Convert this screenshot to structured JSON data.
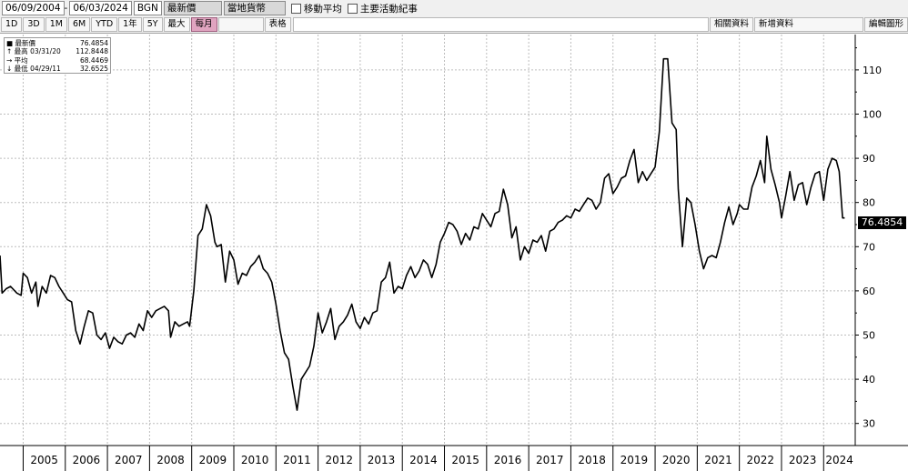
{
  "toolbar": {
    "start_date": "06/09/2004",
    "end_date": "06/03/2024",
    "currency": "BGN",
    "price_type": "最新價",
    "local_currency": "當地貨幣",
    "moving_average": "移動平均",
    "major_events": "主要活動紀事",
    "periods": [
      "1D",
      "3D",
      "1M",
      "6M",
      "YTD",
      "1年",
      "5Y",
      "最大"
    ],
    "frequency": "每月",
    "table": "表格",
    "related_data": "相關資料",
    "new_data": "新增資料",
    "edit_chart": "編輯圖形"
  },
  "legend": {
    "last_label": "最新價",
    "last_value": "76.4854",
    "high_label": "最高",
    "high_date": "03/31/20",
    "high_value": "112.8448",
    "avg_label": "平均",
    "avg_value": "68.4469",
    "low_label": "最低",
    "low_date": "04/29/11",
    "low_value": "32.6525"
  },
  "last_value_tag": "76.4854",
  "colors": {
    "line": "#000000",
    "grid": "#bdbdbd",
    "tag_bg": "#000000",
    "tag_text": "#ffffff"
  },
  "chart_data": {
    "type": "line",
    "title": "",
    "xlabel": "",
    "ylabel": "",
    "x_ticks": [
      "2005",
      "2006",
      "2007",
      "2008",
      "2009",
      "2010",
      "2011",
      "2012",
      "2013",
      "2014",
      "2015",
      "2016",
      "2017",
      "2018",
      "2019",
      "2020",
      "2021",
      "2022",
      "2023",
      "2024"
    ],
    "y_ticks": [
      30,
      40,
      50,
      60,
      70,
      80,
      90,
      100,
      110
    ],
    "ylim": [
      25,
      118
    ],
    "xlim": [
      2004.45,
      2024.75
    ],
    "grid": true,
    "y_axis_side": "right",
    "series": [
      {
        "values": [
          [
            2004.45,
            68.0
          ],
          [
            2004.5,
            59.5
          ],
          [
            2004.6,
            60.5
          ],
          [
            2004.7,
            61.0
          ],
          [
            2004.85,
            59.5
          ],
          [
            2004.95,
            59.0
          ],
          [
            2005.0,
            64.0
          ],
          [
            2005.1,
            63.0
          ],
          [
            2005.2,
            59.5
          ],
          [
            2005.3,
            62.0
          ],
          [
            2005.35,
            56.5
          ],
          [
            2005.45,
            61.0
          ],
          [
            2005.55,
            59.5
          ],
          [
            2005.65,
            63.5
          ],
          [
            2005.75,
            63.0
          ],
          [
            2005.85,
            61.0
          ],
          [
            2005.95,
            59.5
          ],
          [
            2006.05,
            58.0
          ],
          [
            2006.15,
            57.5
          ],
          [
            2006.25,
            51.0
          ],
          [
            2006.35,
            48.0
          ],
          [
            2006.45,
            52.0
          ],
          [
            2006.55,
            55.5
          ],
          [
            2006.65,
            55.0
          ],
          [
            2006.75,
            50.0
          ],
          [
            2006.85,
            49.0
          ],
          [
            2006.95,
            50.5
          ],
          [
            2007.05,
            47.0
          ],
          [
            2007.15,
            49.5
          ],
          [
            2007.25,
            48.5
          ],
          [
            2007.35,
            48.0
          ],
          [
            2007.45,
            50.0
          ],
          [
            2007.55,
            50.5
          ],
          [
            2007.65,
            49.5
          ],
          [
            2007.75,
            52.5
          ],
          [
            2007.85,
            51.0
          ],
          [
            2007.95,
            55.5
          ],
          [
            2008.05,
            54.0
          ],
          [
            2008.15,
            55.5
          ],
          [
            2008.25,
            56.0
          ],
          [
            2008.35,
            56.5
          ],
          [
            2008.45,
            55.5
          ],
          [
            2008.5,
            49.5
          ],
          [
            2008.6,
            53.0
          ],
          [
            2008.7,
            52.0
          ],
          [
            2008.8,
            52.5
          ],
          [
            2008.9,
            53.0
          ],
          [
            2008.95,
            52.0
          ],
          [
            2009.05,
            60.0
          ],
          [
            2009.15,
            72.5
          ],
          [
            2009.25,
            74.0
          ],
          [
            2009.35,
            79.5
          ],
          [
            2009.45,
            77.0
          ],
          [
            2009.55,
            71.0
          ],
          [
            2009.6,
            70.0
          ],
          [
            2009.7,
            70.5
          ],
          [
            2009.8,
            62.0
          ],
          [
            2009.9,
            69.0
          ],
          [
            2010.0,
            67.0
          ],
          [
            2010.1,
            61.5
          ],
          [
            2010.2,
            64.0
          ],
          [
            2010.3,
            63.5
          ],
          [
            2010.4,
            65.5
          ],
          [
            2010.5,
            66.5
          ],
          [
            2010.6,
            68.0
          ],
          [
            2010.7,
            65.0
          ],
          [
            2010.8,
            64.0
          ],
          [
            2010.9,
            62.0
          ],
          [
            2011.0,
            57.0
          ],
          [
            2011.1,
            51.0
          ],
          [
            2011.2,
            46.0
          ],
          [
            2011.3,
            44.5
          ],
          [
            2011.4,
            38.5
          ],
          [
            2011.5,
            33.0
          ],
          [
            2011.6,
            40.0
          ],
          [
            2011.7,
            41.5
          ],
          [
            2011.8,
            43.0
          ],
          [
            2011.9,
            47.5
          ],
          [
            2012.0,
            55.0
          ],
          [
            2012.1,
            50.5
          ],
          [
            2012.2,
            53.0
          ],
          [
            2012.3,
            56.0
          ],
          [
            2012.4,
            49.0
          ],
          [
            2012.5,
            52.0
          ],
          [
            2012.6,
            53.0
          ],
          [
            2012.7,
            54.5
          ],
          [
            2012.8,
            57.0
          ],
          [
            2012.9,
            53.0
          ],
          [
            2013.0,
            51.5
          ],
          [
            2013.1,
            54.0
          ],
          [
            2013.2,
            52.5
          ],
          [
            2013.3,
            55.0
          ],
          [
            2013.4,
            55.5
          ],
          [
            2013.5,
            62.0
          ],
          [
            2013.6,
            63.0
          ],
          [
            2013.7,
            66.5
          ],
          [
            2013.8,
            59.5
          ],
          [
            2013.9,
            61.0
          ],
          [
            2014.0,
            60.5
          ],
          [
            2014.1,
            63.5
          ],
          [
            2014.2,
            65.5
          ],
          [
            2014.3,
            63.0
          ],
          [
            2014.4,
            64.5
          ],
          [
            2014.5,
            67.0
          ],
          [
            2014.6,
            66.0
          ],
          [
            2014.7,
            63.0
          ],
          [
            2014.8,
            66.0
          ],
          [
            2014.9,
            71.0
          ],
          [
            2015.0,
            73.0
          ],
          [
            2015.1,
            75.5
          ],
          [
            2015.2,
            75.0
          ],
          [
            2015.3,
            73.5
          ],
          [
            2015.4,
            70.5
          ],
          [
            2015.5,
            73.0
          ],
          [
            2015.6,
            71.5
          ],
          [
            2015.7,
            74.5
          ],
          [
            2015.8,
            74.0
          ],
          [
            2015.9,
            77.5
          ],
          [
            2016.0,
            76.0
          ],
          [
            2016.1,
            74.5
          ],
          [
            2016.2,
            77.5
          ],
          [
            2016.3,
            78.0
          ],
          [
            2016.4,
            83.0
          ],
          [
            2016.5,
            79.5
          ],
          [
            2016.6,
            72.0
          ],
          [
            2016.7,
            74.5
          ],
          [
            2016.8,
            67.0
          ],
          [
            2016.9,
            70.0
          ],
          [
            2017.0,
            68.5
          ],
          [
            2017.1,
            71.5
          ],
          [
            2017.2,
            71.0
          ],
          [
            2017.3,
            72.5
          ],
          [
            2017.4,
            69.0
          ],
          [
            2017.5,
            73.5
          ],
          [
            2017.6,
            74.0
          ],
          [
            2017.7,
            75.5
          ],
          [
            2017.8,
            76.0
          ],
          [
            2017.9,
            77.0
          ],
          [
            2018.0,
            76.5
          ],
          [
            2018.1,
            78.5
          ],
          [
            2018.2,
            78.0
          ],
          [
            2018.3,
            79.5
          ],
          [
            2018.4,
            81.0
          ],
          [
            2018.5,
            80.5
          ],
          [
            2018.6,
            78.5
          ],
          [
            2018.7,
            80.0
          ],
          [
            2018.8,
            85.5
          ],
          [
            2018.9,
            86.5
          ],
          [
            2019.0,
            82.0
          ],
          [
            2019.1,
            83.5
          ],
          [
            2019.2,
            85.5
          ],
          [
            2019.3,
            86.0
          ],
          [
            2019.4,
            89.5
          ],
          [
            2019.5,
            92.0
          ],
          [
            2019.6,
            84.5
          ],
          [
            2019.7,
            87.0
          ],
          [
            2019.8,
            85.0
          ],
          [
            2019.9,
            86.5
          ],
          [
            2020.0,
            88.0
          ],
          [
            2020.1,
            96.0
          ],
          [
            2020.2,
            112.5
          ],
          [
            2020.3,
            112.5
          ],
          [
            2020.4,
            98.0
          ],
          [
            2020.5,
            96.5
          ],
          [
            2020.55,
            83.0
          ],
          [
            2020.65,
            70.0
          ],
          [
            2020.75,
            81.0
          ],
          [
            2020.85,
            80.0
          ],
          [
            2020.95,
            75.0
          ],
          [
            2021.05,
            69.0
          ],
          [
            2021.15,
            65.0
          ],
          [
            2021.25,
            67.5
          ],
          [
            2021.35,
            68.0
          ],
          [
            2021.45,
            67.5
          ],
          [
            2021.55,
            71.0
          ],
          [
            2021.65,
            75.5
          ],
          [
            2021.75,
            79.0
          ],
          [
            2021.85,
            75.0
          ],
          [
            2021.95,
            77.5
          ],
          [
            2022.0,
            79.5
          ],
          [
            2022.1,
            78.5
          ],
          [
            2022.2,
            78.5
          ],
          [
            2022.3,
            83.5
          ],
          [
            2022.4,
            86.0
          ],
          [
            2022.5,
            89.5
          ],
          [
            2022.6,
            84.5
          ],
          [
            2022.65,
            95.0
          ],
          [
            2022.75,
            87.5
          ],
          [
            2022.85,
            84.0
          ],
          [
            2022.95,
            80.0
          ],
          [
            2023.0,
            76.5
          ],
          [
            2023.1,
            81.5
          ],
          [
            2023.2,
            87.0
          ],
          [
            2023.3,
            80.5
          ],
          [
            2023.4,
            84.0
          ],
          [
            2023.5,
            84.5
          ],
          [
            2023.6,
            79.5
          ],
          [
            2023.7,
            83.5
          ],
          [
            2023.8,
            86.5
          ],
          [
            2023.9,
            87.0
          ],
          [
            2024.0,
            80.5
          ],
          [
            2024.1,
            87.5
          ],
          [
            2024.2,
            90.0
          ],
          [
            2024.3,
            89.5
          ],
          [
            2024.37,
            87.0
          ],
          [
            2024.45,
            76.5
          ],
          [
            2024.5,
            76.49
          ]
        ]
      }
    ]
  }
}
